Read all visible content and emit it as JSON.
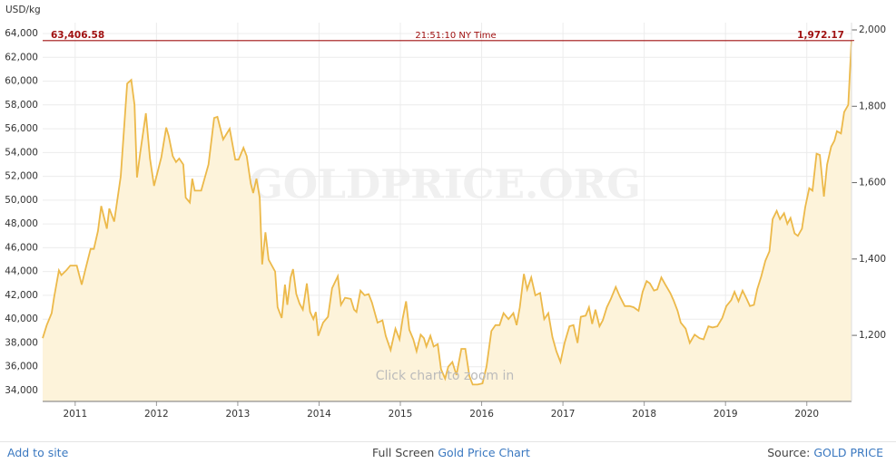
{
  "chart_data": {
    "type": "area",
    "y_axis_label": "USD/kg",
    "watermark": "GOLDPRICE.ORG",
    "hint": "Click chart to zoom in",
    "current": {
      "value": 63406.58,
      "label": "63,406.58",
      "time": "21:51:10 NY Time",
      "value_oz": 1972.17,
      "value_oz_label": "1,972.17"
    },
    "color": "#ecb94a",
    "fill": "#fdf3da",
    "grid": true,
    "xlim": [
      2010.6,
      2020.55
    ],
    "xticks": [
      2011,
      2012,
      2013,
      2014,
      2015,
      2016,
      2017,
      2018,
      2019,
      2020
    ],
    "ylim": [
      33086,
      64914
    ],
    "yticks": [
      {
        "value": 34000,
        "label": "34,000"
      },
      {
        "value": 36000,
        "label": "36,000"
      },
      {
        "value": 38000,
        "label": "38,000"
      },
      {
        "value": 40000,
        "label": "40,000"
      },
      {
        "value": 42000,
        "label": "42,000"
      },
      {
        "value": 44000,
        "label": "44,000"
      },
      {
        "value": 46000,
        "label": "46,000"
      },
      {
        "value": 48000,
        "label": "48,000"
      },
      {
        "value": 50000,
        "label": "50,000"
      },
      {
        "value": 52000,
        "label": "52,000"
      },
      {
        "value": 54000,
        "label": "54,000"
      },
      {
        "value": 56000,
        "label": "56,000"
      },
      {
        "value": 58000,
        "label": "58,000"
      },
      {
        "value": 60000,
        "label": "60,000"
      },
      {
        "value": 62000,
        "label": "62,000"
      },
      {
        "value": 64000,
        "label": "64,000"
      }
    ],
    "y2lim": [
      1027,
      2019
    ],
    "y2ticks": [
      {
        "value": 1200,
        "label": "1,200"
      },
      {
        "value": 1400,
        "label": "1,400"
      },
      {
        "value": 1600,
        "label": "1,600"
      },
      {
        "value": 1800,
        "label": "1,800"
      },
      {
        "value": 2000,
        "label": "2,000"
      }
    ],
    "x": [
      2010.6,
      2010.65,
      2010.71,
      2010.74,
      2010.8,
      2010.83,
      2010.89,
      2010.94,
      2011.02,
      2011.08,
      2011.13,
      2011.19,
      2011.23,
      2011.28,
      2011.32,
      2011.39,
      2011.42,
      2011.48,
      2011.56,
      2011.64,
      2011.69,
      2011.73,
      2011.76,
      2011.8,
      2011.87,
      2011.92,
      2011.97,
      2012.06,
      2012.12,
      2012.15,
      2012.2,
      2012.24,
      2012.28,
      2012.33,
      2012.36,
      2012.41,
      2012.44,
      2012.47,
      2012.55,
      2012.64,
      2012.71,
      2012.75,
      2012.82,
      2012.9,
      2012.97,
      2013.01,
      2013.07,
      2013.11,
      2013.16,
      2013.19,
      2013.23,
      2013.27,
      2013.3,
      2013.34,
      2013.38,
      2013.46,
      2013.49,
      2013.54,
      2013.58,
      2013.61,
      2013.65,
      2013.68,
      2013.72,
      2013.76,
      2013.8,
      2013.85,
      2013.89,
      2013.93,
      2013.96,
      2013.99,
      2014.05,
      2014.11,
      2014.16,
      2014.23,
      2014.27,
      2014.32,
      2014.39,
      2014.43,
      2014.46,
      2014.51,
      2014.56,
      2014.61,
      2014.65,
      2014.72,
      2014.78,
      2014.82,
      2014.88,
      2014.94,
      2014.99,
      2015.03,
      2015.07,
      2015.11,
      2015.16,
      2015.2,
      2015.25,
      2015.29,
      2015.32,
      2015.37,
      2015.41,
      2015.46,
      2015.5,
      2015.55,
      2015.59,
      2015.64,
      2015.69,
      2015.75,
      2015.8,
      2015.85,
      2015.89,
      2015.95,
      2016.01,
      2016.06,
      2016.12,
      2016.17,
      2016.22,
      2016.27,
      2016.33,
      2016.39,
      2016.43,
      2016.47,
      2016.52,
      2016.56,
      2016.61,
      2016.66,
      2016.72,
      2016.77,
      2016.82,
      2016.87,
      2016.92,
      2016.97,
      2017.02,
      2017.08,
      2017.13,
      2017.18,
      2017.22,
      2017.28,
      2017.32,
      2017.36,
      2017.4,
      2017.45,
      2017.49,
      2017.54,
      2017.59,
      2017.65,
      2017.7,
      2017.76,
      2017.82,
      2017.87,
      2017.93,
      2017.98,
      2018.03,
      2018.07,
      2018.12,
      2018.16,
      2018.21,
      2018.26,
      2018.32,
      2018.36,
      2018.41,
      2018.45,
      2018.51,
      2018.56,
      2018.62,
      2018.68,
      2018.73,
      2018.79,
      2018.84,
      2018.9,
      2018.96,
      2019.01,
      2019.07,
      2019.11,
      2019.16,
      2019.21,
      2019.26,
      2019.3,
      2019.35,
      2019.39,
      2019.44,
      2019.49,
      2019.54,
      2019.58,
      2019.63,
      2019.67,
      2019.72,
      2019.76,
      2019.8,
      2019.85,
      2019.89,
      2019.94,
      2019.98,
      2020.03,
      2020.07,
      2020.12,
      2020.16,
      2020.21,
      2020.25,
      2020.3,
      2020.34,
      2020.37,
      2020.42,
      2020.46,
      2020.51,
      2020.55
    ],
    "values": [
      38400,
      39500,
      40500,
      41800,
      44100,
      43700,
      44100,
      44500,
      44500,
      42900,
      44300,
      45900,
      45900,
      47400,
      49500,
      47600,
      49300,
      48200,
      52000,
      59800,
      60100,
      58000,
      51900,
      54000,
      57300,
      53500,
      51200,
      53600,
      56100,
      55400,
      53700,
      53200,
      53500,
      53000,
      50200,
      49800,
      51800,
      50800,
      50800,
      53000,
      56900,
      57000,
      55100,
      56000,
      53400,
      53400,
      54400,
      53700,
      51400,
      50600,
      51800,
      50200,
      44600,
      47300,
      45000,
      44000,
      41000,
      40100,
      42900,
      41200,
      43500,
      44200,
      42100,
      41300,
      40800,
      43000,
      40600,
      40000,
      40600,
      38600,
      39700,
      40200,
      42600,
      43600,
      41200,
      41800,
      41700,
      40800,
      40600,
      42400,
      42000,
      42100,
      41400,
      39700,
      39900,
      38600,
      37400,
      39200,
      38300,
      40100,
      41500,
      39100,
      38300,
      37300,
      38700,
      38400,
      37700,
      38600,
      37700,
      37900,
      35800,
      35000,
      36000,
      36400,
      35300,
      37500,
      37500,
      35200,
      34500,
      34500,
      34600,
      36000,
      39000,
      39500,
      39500,
      40500,
      40000,
      40500,
      39500,
      41000,
      43800,
      42500,
      43500,
      42000,
      42200,
      40000,
      40500,
      38500,
      37300,
      36400,
      38000,
      39400,
      39500,
      38000,
      40200,
      40300,
      41000,
      39600,
      40800,
      39400,
      39900,
      41000,
      41700,
      42700,
      41900,
      41100,
      41100,
      41000,
      40700,
      42300,
      43200,
      43000,
      42400,
      42500,
      43500,
      42900,
      42200,
      41600,
      40700,
      39700,
      39200,
      38000,
      38700,
      38400,
      38300,
      39400,
      39300,
      39400,
      40100,
      41100,
      41600,
      42300,
      41500,
      42400,
      41700,
      41100,
      41200,
      42500,
      43600,
      44900,
      45700,
      48400,
      49100,
      48400,
      48900,
      48000,
      48500,
      47200,
      47000,
      47600,
      49400,
      51000,
      50800,
      53900,
      53800,
      50300,
      53000,
      54500,
      55000,
      55800,
      55600,
      57400,
      58000,
      63406.58
    ]
  },
  "footer": {
    "add": "Add to site",
    "full_screen": "Full Screen",
    "chart_link": "Gold Price Chart",
    "source": "Source:",
    "source_link": "GOLD PRICE"
  }
}
